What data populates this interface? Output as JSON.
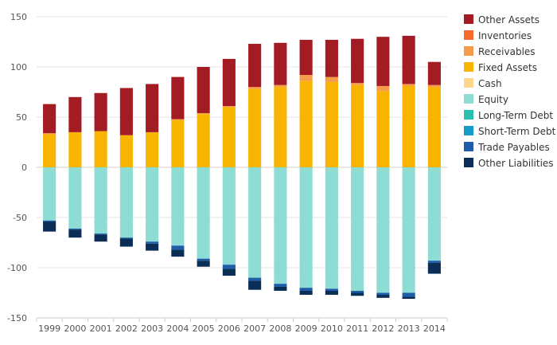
{
  "chart_data": {
    "type": "bar",
    "stacked": true,
    "title": "",
    "xlabel": "",
    "ylabel": "",
    "ylim": [
      -150,
      150
    ],
    "yticks": [
      150,
      100,
      50,
      0,
      -50,
      -100,
      -150
    ],
    "grid": true,
    "legend_position": "right",
    "categories": [
      "1999",
      "2000",
      "2001",
      "2002",
      "2003",
      "2004",
      "2005",
      "2006",
      "2007",
      "2008",
      "2009",
      "2010",
      "2011",
      "2012",
      "2013",
      "2014"
    ],
    "series": [
      {
        "name": "Fixed Assets",
        "color": "#F8B400",
        "side": "assets",
        "values": [
          33,
          35,
          36,
          32,
          35,
          47,
          53,
          60,
          78,
          80,
          86,
          85,
          82,
          76,
          81,
          80
        ]
      },
      {
        "name": "Cash",
        "color": "#FCD98A",
        "side": "assets",
        "values": [
          0,
          0,
          0,
          0,
          0,
          0,
          0,
          0,
          0,
          0,
          0,
          0,
          0,
          0,
          0,
          0
        ]
      },
      {
        "name": "Receivables",
        "color": "#F59B4A",
        "side": "assets",
        "values": [
          1,
          0,
          0,
          0,
          0,
          1,
          1,
          1,
          2,
          2,
          6,
          5,
          2,
          5,
          2,
          2
        ]
      },
      {
        "name": "Inventories",
        "color": "#F46B2B",
        "side": "assets",
        "values": [
          0,
          0,
          0,
          0,
          0,
          0,
          0,
          0,
          0,
          0,
          0,
          0,
          0,
          0,
          0,
          0
        ]
      },
      {
        "name": "Other Assets",
        "color": "#A31C23",
        "side": "assets",
        "values": [
          29,
          35,
          38,
          47,
          48,
          42,
          46,
          47,
          43,
          42,
          35,
          37,
          44,
          49,
          48,
          23
        ]
      },
      {
        "name": "Equity",
        "color": "#8DDDD4",
        "side": "liabilities",
        "values": [
          -53,
          -61,
          -66,
          -70,
          -74,
          -78,
          -91,
          -97,
          -110,
          -116,
          -120,
          -121,
          -123,
          -125,
          -125,
          -93
        ]
      },
      {
        "name": "Long-Term Debt",
        "color": "#2DBFAE",
        "side": "liabilities",
        "values": [
          0,
          0,
          0,
          0,
          0,
          0,
          0,
          0,
          0,
          0,
          0,
          0,
          0,
          0,
          0,
          0
        ]
      },
      {
        "name": "Short-Term Debt",
        "color": "#159BC8",
        "side": "liabilities",
        "values": [
          0,
          0,
          0,
          0,
          0,
          0,
          0,
          0,
          0,
          0,
          0,
          0,
          0,
          0,
          0,
          0
        ]
      },
      {
        "name": "Trade Payables",
        "color": "#1F5DA8",
        "side": "liabilities",
        "values": [
          -1,
          -1,
          -1,
          -1,
          -2,
          -4,
          -2,
          -4,
          -3,
          -3,
          -3,
          -2,
          -2,
          -2,
          -4,
          -2
        ]
      },
      {
        "name": "Other Liabilities",
        "color": "#0B2E57",
        "side": "liabilities",
        "values": [
          -10,
          -8,
          -7,
          -8,
          -7,
          -7,
          -6,
          -7,
          -9,
          -4,
          -4,
          -4,
          -3,
          -3,
          -2,
          -11
        ]
      }
    ],
    "legend": [
      "Other Assets",
      "Inventories",
      "Receivables",
      "Fixed Assets",
      "Cash",
      "Equity",
      "Long-Term Debt",
      "Short-Term Debt",
      "Trade Payables",
      "Other Liabilities"
    ]
  }
}
